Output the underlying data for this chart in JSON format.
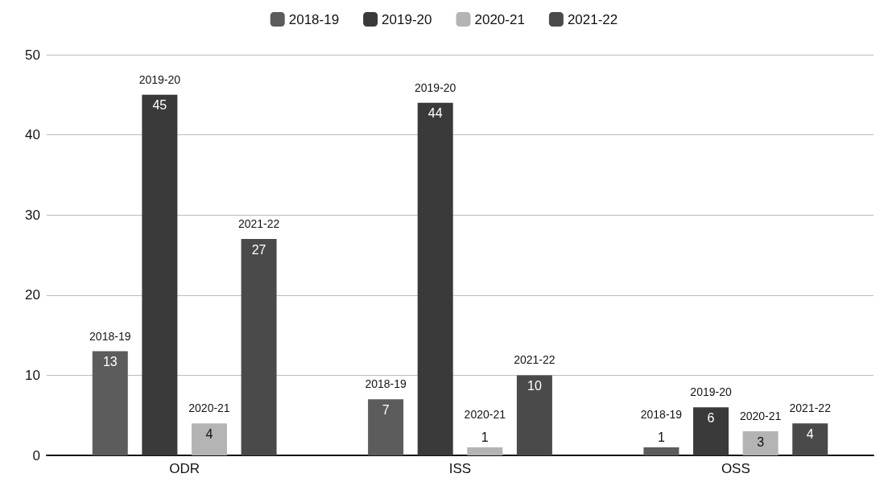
{
  "chart_data": {
    "type": "bar",
    "categories": [
      "ODR",
      "ISS",
      "OSS"
    ],
    "series": [
      {
        "name": "2018-19",
        "color": "#5c5c5c",
        "values": [
          13,
          7,
          1
        ]
      },
      {
        "name": "2019-20",
        "color": "#3a3a3a",
        "values": [
          45,
          44,
          6
        ]
      },
      {
        "name": "2020-21",
        "color": "#b4b4b4",
        "values": [
          4,
          1,
          3
        ]
      },
      {
        "name": "2021-22",
        "color": "#4a4a4a",
        "values": [
          27,
          10,
          4
        ]
      }
    ],
    "ylim": [
      0,
      50
    ],
    "yticks": [
      0,
      10,
      20,
      30,
      40,
      50
    ],
    "grid": "y",
    "legend": "top",
    "data_labels": true
  }
}
